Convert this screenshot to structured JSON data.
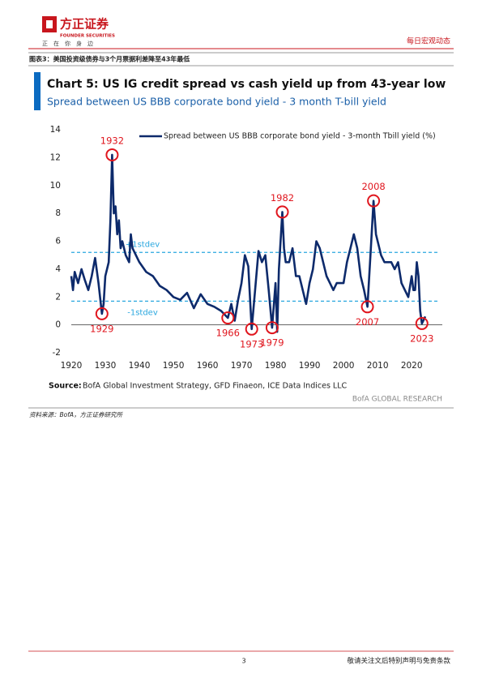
{
  "header": {
    "logo_name": "方正证券",
    "logo_english": "FOUNDER SECURITIES",
    "slogan": "正　在　你　身　边",
    "section": "每日宏观动态"
  },
  "figure_caption": "图表3：美国投资级债券与3个月票据利差降至43年最低",
  "chart_data": {
    "type": "line",
    "title": "Chart 5: US IG credit spread vs cash yield up from 43-year low",
    "subtitle": "Spread between US BBB corporate bond yield - 3 month T-bill yield",
    "source_label": "Source:",
    "source": "BofA Global Investment Strategy, GFD Finaeon, ICE Data Indices LLC",
    "brand": "BofA GLOBAL RESEARCH",
    "xlim": [
      1920,
      2029
    ],
    "xticks": [
      1920,
      1930,
      1940,
      1950,
      1960,
      1970,
      1980,
      1990,
      2000,
      2010,
      2020
    ],
    "ylim": [
      -2,
      14
    ],
    "yticks": [
      -2,
      0,
      2,
      4,
      6,
      8,
      10,
      12,
      14
    ],
    "series": [
      {
        "name": "Spread between US BBB corporate bond yield - 3-month Tbill yield (%)",
        "color": "#0d2a6b",
        "x": [
          1920,
          1920.5,
          1921,
          1922,
          1923,
          1924,
          1925,
          1926,
          1927,
          1928,
          1929,
          1929.5,
          1930,
          1930.5,
          1931,
          1931.5,
          1932,
          1932.5,
          1933,
          1933.5,
          1934,
          1934.5,
          1935,
          1936,
          1937,
          1937.5,
          1938,
          1939,
          1940,
          1942,
          1944,
          1946,
          1948,
          1950,
          1952,
          1954,
          1956,
          1958,
          1960,
          1962,
          1964,
          1966,
          1967,
          1968,
          1969,
          1970,
          1971,
          1972,
          1973,
          1974,
          1975,
          1976,
          1977,
          1978,
          1979,
          1980,
          1980.5,
          1981,
          1982,
          1982.5,
          1983,
          1984,
          1985,
          1986,
          1987,
          1988,
          1989,
          1990,
          1991,
          1992,
          1993,
          1994,
          1995,
          1996,
          1997,
          1998,
          1999,
          2000,
          2001,
          2002,
          2003,
          2004,
          2005,
          2006,
          2007,
          2008,
          2008.8,
          2009.5,
          2010,
          2011,
          2012,
          2013,
          2014,
          2015,
          2016,
          2017,
          2018,
          2019,
          2020,
          2020.5,
          2021,
          2021.5,
          2022,
          2022.5,
          2023,
          2024
        ],
        "values": [
          3.5,
          2.5,
          3.8,
          3.0,
          4.0,
          3.2,
          2.5,
          3.5,
          4.8,
          3.0,
          0.8,
          1.5,
          3.5,
          4.0,
          4.5,
          7.5,
          12.2,
          8.0,
          8.5,
          6.5,
          7.5,
          5.5,
          6.0,
          5.0,
          4.5,
          6.5,
          5.5,
          5.0,
          4.5,
          3.8,
          3.5,
          2.8,
          2.5,
          2.0,
          1.8,
          2.3,
          1.2,
          2.2,
          1.5,
          1.3,
          1.0,
          0.5,
          1.5,
          0.3,
          1.8,
          3.0,
          5.0,
          4.2,
          -0.3,
          2.5,
          5.3,
          4.5,
          5.0,
          2.5,
          -0.2,
          3.0,
          -0.5,
          4.0,
          8.1,
          5.5,
          4.5,
          4.5,
          5.5,
          3.5,
          3.5,
          2.5,
          1.5,
          3.0,
          4.0,
          6.0,
          5.5,
          4.5,
          3.5,
          3.0,
          2.5,
          3.0,
          3.0,
          3.0,
          4.5,
          5.5,
          6.5,
          5.5,
          3.5,
          2.5,
          1.3,
          5.5,
          8.9,
          6.5,
          6.0,
          5.0,
          4.5,
          4.5,
          4.5,
          4.0,
          4.5,
          3.0,
          2.5,
          2.0,
          3.5,
          2.5,
          2.5,
          4.5,
          3.5,
          1.0,
          0.1,
          0.6
        ]
      }
    ],
    "reference_lines": [
      {
        "value": 5.2,
        "label": "+1stdev",
        "color": "#2aa7df"
      },
      {
        "value": 1.7,
        "label": "-1stdev",
        "color": "#2aa7df"
      }
    ],
    "annotations": [
      {
        "label": "1929",
        "x": 1929,
        "y": 0.8
      },
      {
        "label": "1932",
        "x": 1932,
        "y": 12.2
      },
      {
        "label": "1966",
        "x": 1966,
        "y": 0.5
      },
      {
        "label": "1973",
        "x": 1973,
        "y": -0.3
      },
      {
        "label": "1979",
        "x": 1979,
        "y": -0.2
      },
      {
        "label": "1982",
        "x": 1982,
        "y": 8.1
      },
      {
        "label": "2007",
        "x": 2007,
        "y": 1.3
      },
      {
        "label": "2008",
        "x": 2008.8,
        "y": 8.9
      },
      {
        "label": "2023",
        "x": 2023,
        "y": 0.1
      }
    ]
  },
  "source_note": "资料来源：BofA，方正证券研究所",
  "footer": {
    "page": "3",
    "disclaimer": "敬请关注文后特别声明与免责条款"
  }
}
